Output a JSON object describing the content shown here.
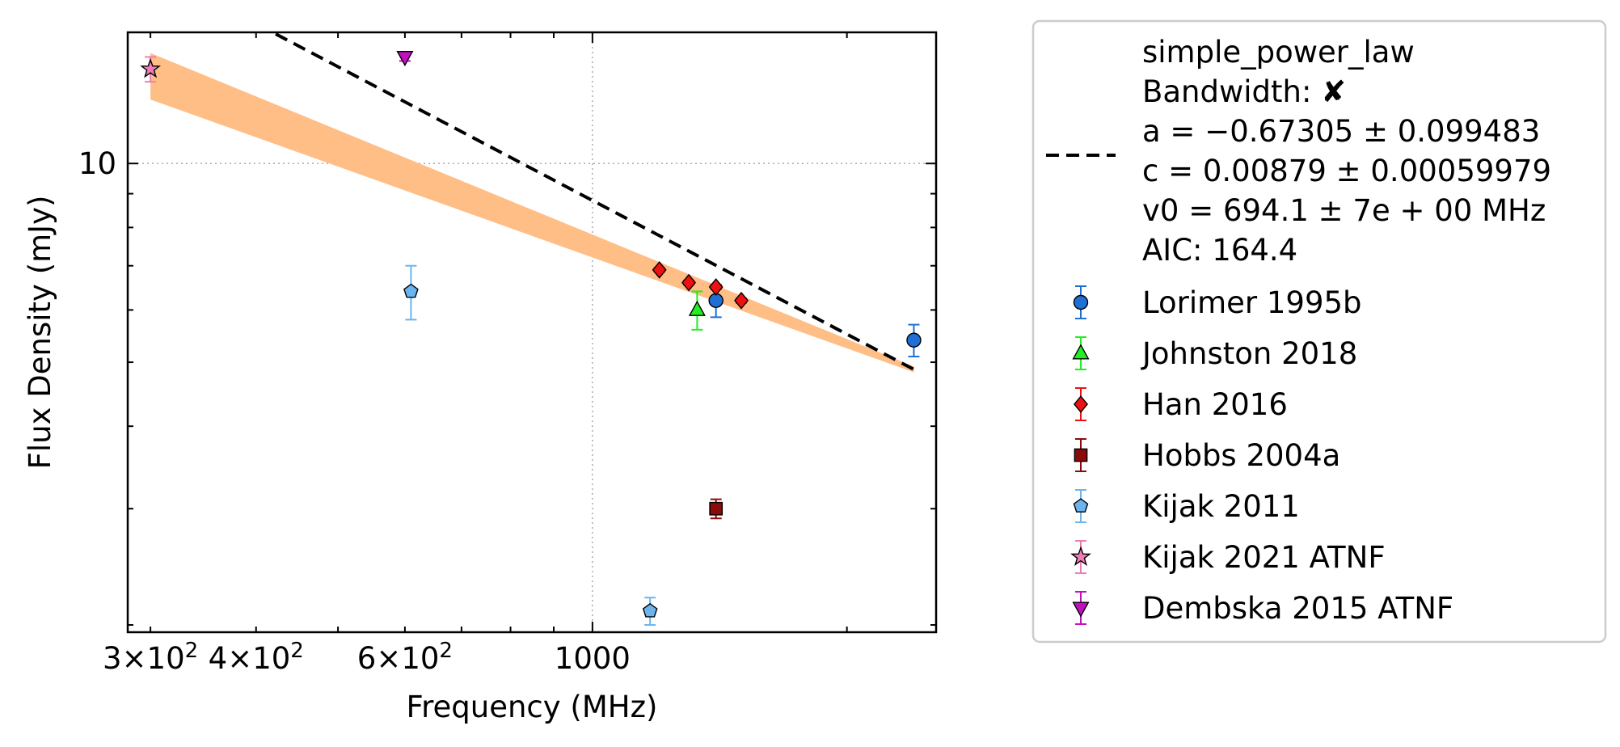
{
  "chart_data": {
    "type": "scatter",
    "title": "",
    "xlabel": "Frequency (MHz)",
    "ylabel": "Flux Density (mJy)",
    "x_scale": "log",
    "y_scale": "log",
    "xlim": [
      282,
      2550
    ],
    "ylim": [
      1.95,
      15.8
    ],
    "grid": "dotted at major ticks",
    "legend_position": "outside-right",
    "x_ticks": [
      {
        "value": 300,
        "mantissa": "3",
        "base": "10",
        "exp": "2"
      },
      {
        "value": 400,
        "mantissa": "4",
        "base": "10",
        "exp": "2"
      },
      {
        "value": 600,
        "mantissa": "6",
        "base": "10",
        "exp": "2"
      },
      {
        "value": 1000,
        "label": "1000"
      }
    ],
    "y_ticks": [
      {
        "value": 10,
        "label": "10"
      }
    ],
    "fit": {
      "label": "simple_power_law",
      "color": "#000000",
      "band_color": "#ffbe86",
      "x_range": [
        300,
        2400
      ],
      "a": -0.67305,
      "c_mjy": 8.79,
      "v0": 694.1,
      "band_low_at_300": 12.5,
      "band_high_at_300": 14.7,
      "lines": [
        "simple_power_law",
        "Bandwidth: ✘",
        "a = −0.67305 ± 0.099483",
        "c = 0.00879 ± 0.00059979",
        "v0 = 694.1 ± 7e + 00 MHz",
        "AIC: 164.4"
      ]
    },
    "series": [
      {
        "name": "Lorimer 1995b",
        "marker": "circle",
        "fill": "#1f6fd4",
        "err_color": "#1f6fd4",
        "points": [
          {
            "x": 1400,
            "y": 6.2,
            "err": 0.35
          },
          {
            "x": 2400,
            "y": 5.4,
            "err": 0.3
          }
        ]
      },
      {
        "name": "Johnston 2018",
        "marker": "triangle-up",
        "fill": "#22ee22",
        "err_color": "#22ee22",
        "points": [
          {
            "x": 1330,
            "y": 6.0,
            "err": 0.4
          }
        ]
      },
      {
        "name": "Han 2016",
        "marker": "diamond",
        "fill": "#ee1111",
        "err_color": "#ee1111",
        "points": [
          {
            "x": 1200,
            "y": 6.9,
            "err": 0.05
          },
          {
            "x": 1300,
            "y": 6.6,
            "err": 0.05
          },
          {
            "x": 1400,
            "y": 6.5,
            "err": 0.05
          },
          {
            "x": 1500,
            "y": 6.2,
            "err": 0.05
          }
        ]
      },
      {
        "name": "Hobbs 2004a",
        "marker": "square",
        "fill": "#8b0a0a",
        "err_color": "#8b0a0a",
        "points": [
          {
            "x": 1400,
            "y": 3.0,
            "err": 0.1
          }
        ]
      },
      {
        "name": "Kijak 2011",
        "marker": "pentagon",
        "fill": "#6cb4ee",
        "err_color": "#6cb4ee",
        "points": [
          {
            "x": 610,
            "y": 6.4,
            "err": 0.6
          },
          {
            "x": 1170,
            "y": 2.1,
            "err": 0.1
          }
        ]
      },
      {
        "name": "Kijak 2021 ATNF",
        "marker": "star",
        "fill": "#f07cb6",
        "err_color": "#f07cb6",
        "points": [
          {
            "x": 300,
            "y": 13.9,
            "err": 0.6
          }
        ]
      },
      {
        "name": "Dembska 2015 ATNF",
        "marker": "triangle-down",
        "fill": "#c010c0",
        "err_color": "#c010c0",
        "points": [
          {
            "x": 600,
            "y": 14.5,
            "err": 0.2
          }
        ]
      }
    ]
  }
}
